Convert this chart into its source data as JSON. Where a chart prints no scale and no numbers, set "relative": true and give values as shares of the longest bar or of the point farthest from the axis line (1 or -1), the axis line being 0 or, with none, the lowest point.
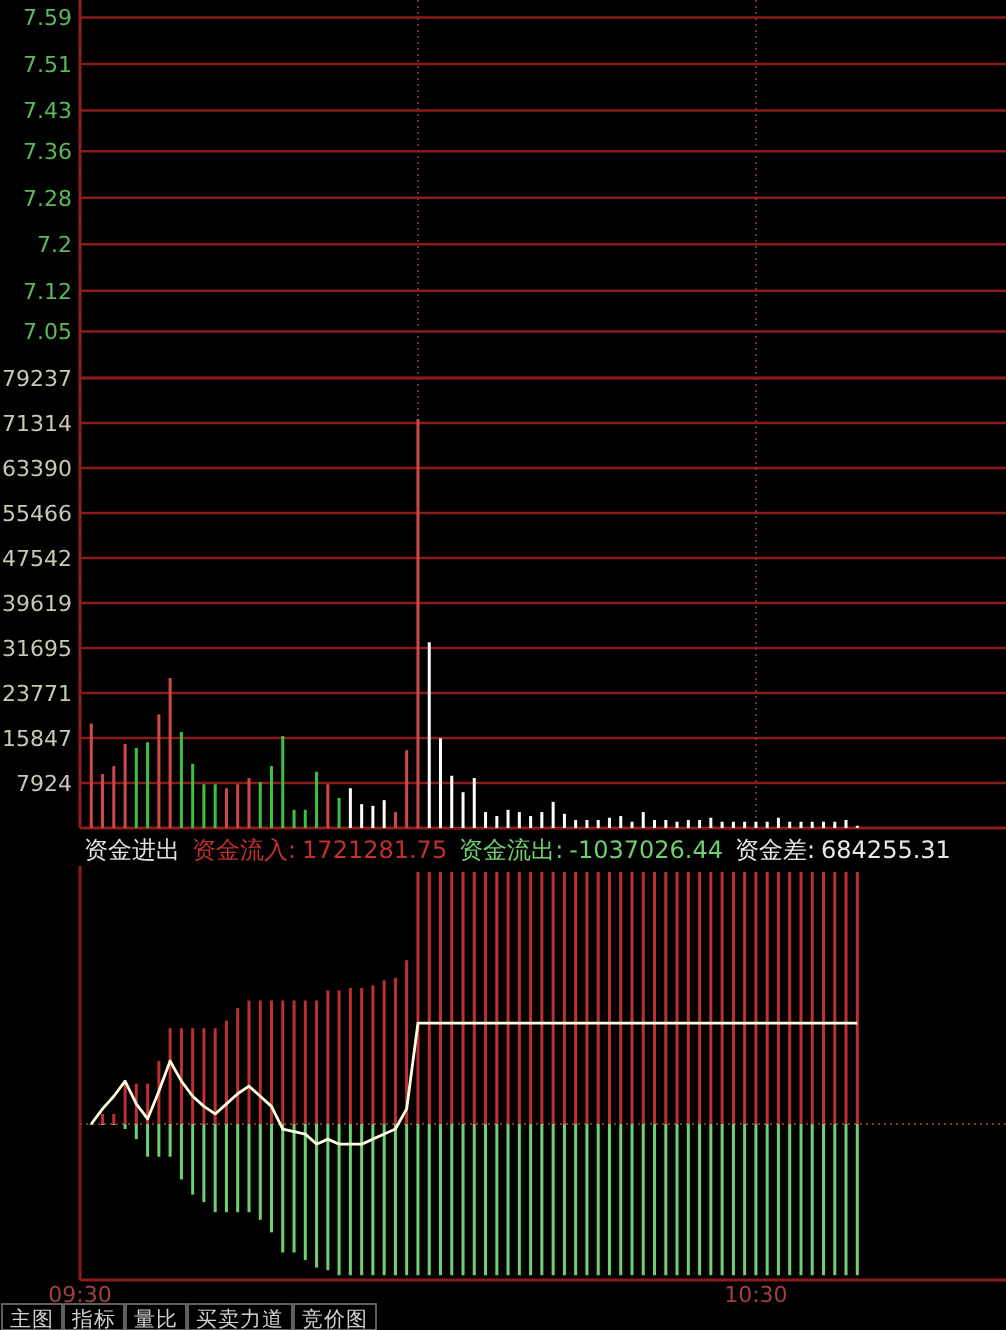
{
  "chart_data": [
    {
      "type": "line",
      "xlim": [
        9.5,
        10.87
      ],
      "xticks": [
        {
          "value": 9.5,
          "label": null
        },
        {
          "value": 10,
          "label": null
        },
        {
          "value": 10.5,
          "label": null
        }
      ],
      "ylim": [
        6.97,
        7.62
      ],
      "yticks": [
        7.05,
        7.12,
        7.2,
        7.28,
        7.36,
        7.43,
        7.51,
        7.59
      ],
      "grid": true,
      "tick_labels": "y"
    },
    {
      "type": "bar",
      "xlim": [
        9.5,
        10.87
      ],
      "xticks": [
        {
          "value": 9.5,
          "label": null
        },
        {
          "value": 10,
          "label": null
        },
        {
          "value": 10.5,
          "label": null
        }
      ],
      "ylim": [
        0,
        79237
      ],
      "yticks": [
        7924,
        15847,
        23771,
        31695,
        39619,
        47542,
        55466,
        63390,
        71314,
        79237
      ],
      "grid": true,
      "tick_labels": "y",
      "x": [
        9.5167,
        9.5333,
        9.55,
        9.5667,
        9.5833,
        9.6,
        9.6167,
        9.6333,
        9.65,
        9.6667,
        9.6833,
        9.7,
        9.7167,
        9.7333,
        9.75,
        9.7667,
        9.7833,
        9.8,
        9.8167,
        9.8333,
        9.85,
        9.8667,
        9.8833,
        9.9,
        9.9167,
        9.9333,
        9.95,
        9.9667,
        9.9833,
        10,
        10.0167,
        10.0333,
        10.05,
        10.0667,
        10.0833,
        10.1,
        10.1167,
        10.1333,
        10.15,
        10.1667,
        10.1833,
        10.2,
        10.2167,
        10.2333,
        10.25,
        10.2667,
        10.2833,
        10.3,
        10.3167,
        10.3333,
        10.35,
        10.3667,
        10.3833,
        10.4,
        10.4167,
        10.4333,
        10.45,
        10.4667,
        10.4833,
        10.5,
        10.5167,
        10.5333,
        10.55,
        10.5667,
        10.5833,
        10.6,
        10.6167,
        10.6333,
        10.65
      ],
      "values": [
        18400,
        9500,
        10900,
        14800,
        14100,
        15100,
        20000,
        26400,
        16900,
        11300,
        7700,
        7700,
        7000,
        7700,
        8800,
        8100,
        10900,
        16200,
        3200,
        3200,
        9900,
        7700,
        5300,
        7000,
        4200,
        3900,
        4900,
        2800,
        13700,
        72000,
        32700,
        15800,
        9200,
        6300,
        8800,
        2800,
        2100,
        3200,
        2800,
        2100,
        2800,
        4600,
        2500,
        1400,
        1400,
        1400,
        1800,
        2100,
        1100,
        2800,
        1400,
        1400,
        1100,
        1400,
        1400,
        1800,
        1100,
        1100,
        1100,
        1100,
        1100,
        1800,
        1100,
        1100,
        1100,
        1100,
        1100,
        1400,
        400
      ],
      "colors": [
        "#d04848",
        "#d04848",
        "#d04848",
        "#d04848",
        "#40c040",
        "#40c040",
        "#d04848",
        "#d04848",
        "#40c040",
        "#40c040",
        "#40c040",
        "#40c040",
        "#d04848",
        "#d04848",
        "#d04848",
        "#40c040",
        "#40c040",
        "#40c040",
        "#40c040",
        "#40c040",
        "#40c040",
        "#d04848",
        "#40c040",
        "#ffffff",
        "#ffffff",
        "#ffffff",
        "#ffffff",
        "#d04848",
        "#d04848",
        "#d04848",
        "#ffffff",
        "#ffffff",
        "#ffffff",
        "#ffffff",
        "#ffffff",
        "#ffffff",
        "#ffffff",
        "#ffffff",
        "#ffffff",
        "#ffffff",
        "#ffffff",
        "#ffffff",
        "#ffffff",
        "#ffffff",
        "#ffffff",
        "#ffffff",
        "#ffffff",
        "#ffffff",
        "#ffffff",
        "#ffffff",
        "#ffffff",
        "#ffffff",
        "#ffffff",
        "#ffffff",
        "#ffffff",
        "#ffffff",
        "#ffffff",
        "#ffffff",
        "#ffffff",
        "#ffffff",
        "#ffffff",
        "#ffffff",
        "#ffffff",
        "#ffffff",
        "#ffffff",
        "#ffffff",
        "#ffffff",
        "#ffffff",
        "#ffffff"
      ]
    },
    {
      "type": "bar",
      "title": "资金进出",
      "relative": true,
      "tick_labels": "x",
      "ref_lines": [
        {
          "axis": "y",
          "value": 0,
          "line_style": "dotted",
          "color": "#8c3030"
        }
      ],
      "xlim": [
        9.5,
        10.87
      ],
      "xticks": [
        {
          "value": 9.5,
          "label": "09:30"
        },
        {
          "value": 10,
          "label": null
        },
        {
          "value": 10.5,
          "label": "10:30"
        }
      ],
      "annotations": [
        "1721281.75",
        "-1037026.44",
        "684255.31"
      ],
      "x": [
        9.5167,
        9.5333,
        9.55,
        9.5667,
        9.5833,
        9.6,
        9.6167,
        9.6333,
        9.65,
        9.6667,
        9.6833,
        9.7,
        9.7167,
        9.7333,
        9.75,
        9.7667,
        9.7833,
        9.8,
        9.8167,
        9.8333,
        9.85,
        9.8667,
        9.8833,
        9.9,
        9.9167,
        9.9333,
        9.95,
        9.9667,
        9.9833,
        10,
        10.0167,
        10.0333,
        10.05,
        10.0667,
        10.0833,
        10.1,
        10.1167,
        10.1333,
        10.15,
        10.1667,
        10.1833,
        10.2,
        10.2167,
        10.2333,
        10.25,
        10.2667,
        10.2833,
        10.3,
        10.3167,
        10.3333,
        10.35,
        10.3667,
        10.3833,
        10.4,
        10.4167,
        10.4333,
        10.45,
        10.4667,
        10.4833,
        10.5,
        10.5167,
        10.5333,
        10.55,
        10.5667,
        10.5833,
        10.6,
        10.6167,
        10.6333,
        10.65
      ],
      "series": [
        {
          "name": "资金流入:",
          "color": "#c03030",
          "values": [
            0,
            0.04,
            0.04,
            0.16,
            0.16,
            0.16,
            0.25,
            0.38,
            0.38,
            0.38,
            0.38,
            0.38,
            0.41,
            0.46,
            0.49,
            0.49,
            0.49,
            0.49,
            0.49,
            0.49,
            0.49,
            0.53,
            0.53,
            0.54,
            0.54,
            0.55,
            0.57,
            0.58,
            0.65,
            1,
            1,
            1,
            1,
            1,
            1,
            1,
            1,
            1,
            1,
            1,
            1,
            1,
            1,
            1,
            1,
            1,
            1,
            1,
            1,
            1,
            1,
            1,
            1,
            1,
            1,
            1,
            1,
            1,
            1,
            1,
            1,
            1,
            1,
            1,
            1,
            1,
            1,
            1,
            1
          ]
        },
        {
          "name": "资金流出:",
          "color": "#70d070",
          "values": [
            0,
            0,
            0,
            -0.02,
            -0.06,
            -0.13,
            -0.13,
            -0.13,
            -0.22,
            -0.28,
            -0.31,
            -0.35,
            -0.35,
            -0.35,
            -0.35,
            -0.38,
            -0.43,
            -0.51,
            -0.51,
            -0.54,
            -0.57,
            -0.58,
            -0.6,
            -0.6,
            -0.6,
            -0.6,
            -0.6,
            -0.6,
            -0.6,
            -0.6,
            -0.6,
            -0.6,
            -0.6,
            -0.6,
            -0.6,
            -0.6,
            -0.6,
            -0.6,
            -0.6,
            -0.6,
            -0.6,
            -0.6,
            -0.6,
            -0.6,
            -0.6,
            -0.6,
            -0.6,
            -0.6,
            -0.6,
            -0.6,
            -0.6,
            -0.6,
            -0.6,
            -0.6,
            -0.6,
            -0.6,
            -0.6,
            -0.6,
            -0.6,
            -0.6,
            -0.6,
            -0.6,
            -0.6,
            -0.6,
            -0.6,
            -0.6,
            -0.6,
            -0.6,
            -0.6
          ]
        },
        {
          "name": "资金差:",
          "type": "line",
          "color": "#ffffe0",
          "x": [
            9.5167,
            9.5333,
            9.55,
            9.5667,
            9.5833,
            9.6,
            9.6167,
            9.6333,
            9.65,
            9.6667,
            9.6833,
            9.7,
            9.7167,
            9.7333,
            9.75,
            9.7667,
            9.7833,
            9.8,
            9.8167,
            9.8333,
            9.85,
            9.8667,
            9.8833,
            9.9,
            9.9167,
            9.9333,
            9.95,
            9.9667,
            9.9833,
            10,
            10.65
          ],
          "values": [
            0,
            0.06,
            0.11,
            0.17,
            0.08,
            0.02,
            0.13,
            0.25,
            0.17,
            0.11,
            0.07,
            0.04,
            0.08,
            0.12,
            0.15,
            0.11,
            0.07,
            -0.02,
            -0.03,
            -0.04,
            -0.08,
            -0.06,
            -0.08,
            -0.08,
            -0.08,
            -0.06,
            -0.04,
            -0.02,
            0.06,
            0.4,
            0.4
          ]
        }
      ]
    },
    {
      "type": "other",
      "annotations": [
        "主图",
        "指标",
        "量比",
        "买卖力道",
        "竞价图"
      ]
    }
  ]
}
